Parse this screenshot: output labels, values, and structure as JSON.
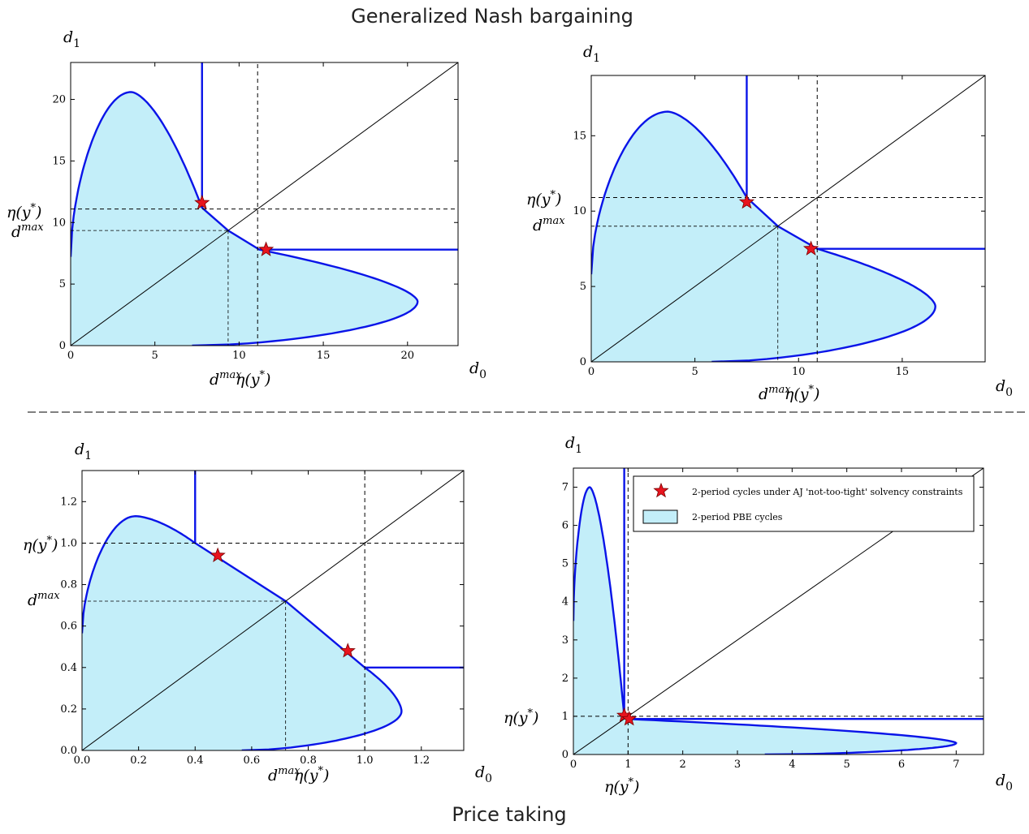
{
  "headings": {
    "top": "Generalized Nash bargaining",
    "bottom": "Price taking"
  },
  "colors": {
    "fill": "#c3eef9",
    "boundary": "#0a14e8",
    "star": "#e8141e",
    "diagonal": "#000000",
    "dashed": "#000000"
  },
  "legend": {
    "star_label": "2-period cycles under AJ 'not-too-tight' solvency constraints",
    "fill_label": "2-period PBE cycles"
  },
  "chart_data": [
    {
      "id": "gnb_left",
      "type": "area",
      "xlabel": "d",
      "xlabel_sub": "0",
      "ylabel": "d",
      "ylabel_sub": "1",
      "xlim": [
        0,
        23
      ],
      "ylim": [
        0,
        23
      ],
      "xticks": [
        0,
        5,
        10,
        15,
        20
      ],
      "yticks": [
        0,
        5,
        10,
        15,
        20
      ],
      "tick_labels_x": [
        "0",
        "5",
        "10",
        "15",
        "20"
      ],
      "tick_labels_y": [
        "0",
        "5",
        "10",
        "15",
        "20"
      ],
      "eta": 11.1,
      "dmax": 9.35,
      "region_peak": 20.6,
      "region_peak_at": 3.6,
      "region_min": 0.7,
      "stars": [
        [
          7.8,
          11.6
        ],
        [
          11.6,
          7.8
        ]
      ],
      "kink": [
        7.8,
        11.2
      ],
      "annotations": {
        "eta_y": "η(y*)",
        "dmax_y": "d^max",
        "dmax_x": "d^max",
        "eta_x": "η(y*)"
      }
    },
    {
      "id": "gnb_right",
      "type": "area",
      "xlabel": "d",
      "xlabel_sub": "0",
      "ylabel": "d",
      "ylabel_sub": "1",
      "xlim": [
        0,
        19
      ],
      "ylim": [
        0,
        19
      ],
      "xticks": [
        0,
        5,
        10,
        15
      ],
      "yticks": [
        0,
        5,
        10,
        15
      ],
      "tick_labels_x": [
        "0",
        "5",
        "10",
        "15"
      ],
      "tick_labels_y": [
        "0",
        "5",
        "10",
        "15"
      ],
      "eta": 10.9,
      "dmax": 9.0,
      "region_peak": 16.6,
      "region_peak_at": 3.7,
      "region_min": 0.7,
      "stars": [
        [
          7.5,
          10.6
        ],
        [
          10.6,
          7.5
        ]
      ],
      "kink": [
        7.5,
        10.9
      ],
      "annotations": {
        "eta_y": "η(y*)",
        "dmax_y": "d^max",
        "dmax_x": "d^max",
        "eta_x": "η(y*)"
      }
    },
    {
      "id": "pt_left",
      "type": "area",
      "xlabel": "d",
      "xlabel_sub": "0",
      "ylabel": "d",
      "ylabel_sub": "1",
      "xlim": [
        0,
        1.35
      ],
      "ylim": [
        0,
        1.35
      ],
      "xticks": [
        0,
        0.2,
        0.4,
        0.6,
        0.8,
        1.0,
        1.2
      ],
      "yticks": [
        0,
        0.2,
        0.4,
        0.6,
        0.8,
        1.0,
        1.2
      ],
      "tick_labels_x": [
        "0.0",
        "0.2",
        "0.4",
        "0.6",
        "0.8",
        "1.0",
        "1.2"
      ],
      "tick_labels_y": [
        "0.0",
        "0.2",
        "0.4",
        "0.6",
        "0.8",
        "1.0",
        "1.2"
      ],
      "eta": 1.0,
      "dmax": 0.72,
      "region_peak": 1.13,
      "region_peak_at": 0.19,
      "region_min": 0.0,
      "stars": [
        [
          0.48,
          0.94
        ],
        [
          0.94,
          0.48
        ]
      ],
      "kink": [
        0.4,
        1.0
      ],
      "annotations": {
        "eta_y": "η(y*)",
        "dmax_y": "d^max",
        "dmax_x": "d^max",
        "eta_x": "η(y*)"
      }
    },
    {
      "id": "pt_right",
      "type": "area",
      "xlabel": "d",
      "xlabel_sub": "0",
      "ylabel": "d",
      "ylabel_sub": "1",
      "xlim": [
        0,
        7.5
      ],
      "ylim": [
        0,
        7.5
      ],
      "xticks": [
        0,
        1,
        2,
        3,
        4,
        5,
        6,
        7
      ],
      "yticks": [
        0,
        1,
        2,
        3,
        4,
        5,
        6,
        7
      ],
      "tick_labels_x": [
        "0",
        "1",
        "2",
        "3",
        "4",
        "5",
        "6",
        "7"
      ],
      "tick_labels_y": [
        "0",
        "1",
        "2",
        "3",
        "4",
        "5",
        "6",
        "7"
      ],
      "eta": 1.0,
      "dmax": 0.95,
      "region_peak": 7.0,
      "region_peak_at": 0.3,
      "region_min": 0.0,
      "stars": [
        [
          0.93,
          1.02
        ],
        [
          1.02,
          0.93
        ]
      ],
      "kink": [
        0.93,
        1.0
      ],
      "legend_position": "upper-right",
      "annotations": {
        "eta_y": "η(y*)",
        "eta_x": "η(y*)"
      }
    }
  ]
}
